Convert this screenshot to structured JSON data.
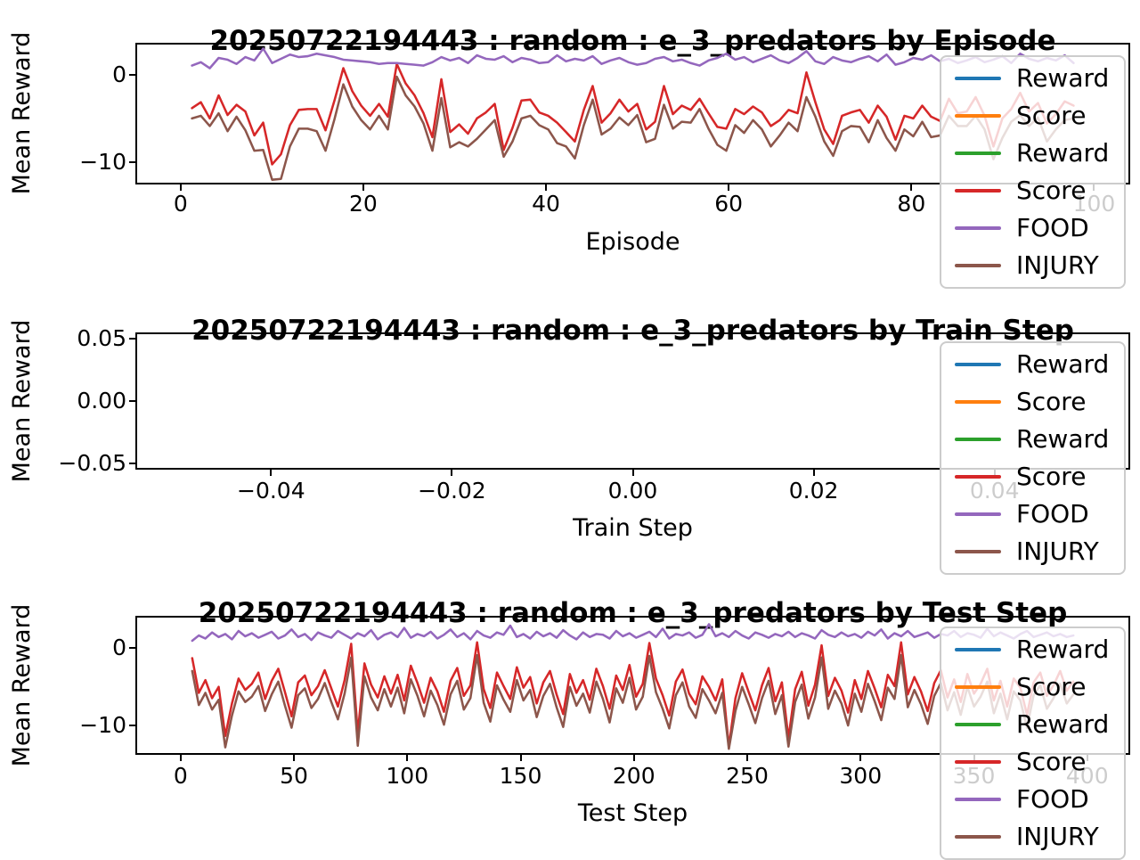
{
  "figure": {
    "background": "#ffffff",
    "text_color": "#000000",
    "accent_colors": {
      "blue": "#1f77b4",
      "orange": "#ff7f0e",
      "green": "#2ca02c",
      "red": "#d62728",
      "purple": "#9467bd",
      "brown": "#8c564b"
    }
  },
  "legend": {
    "entries": [
      {
        "label": "Reward",
        "color": "#1f77b4"
      },
      {
        "label": "Score",
        "color": "#ff7f0e"
      },
      {
        "label": "Reward",
        "color": "#2ca02c"
      },
      {
        "label": "Score",
        "color": "#d62728"
      },
      {
        "label": "FOOD",
        "color": "#9467bd"
      },
      {
        "label": "INJURY",
        "color": "#8c564b"
      }
    ]
  },
  "chart_data": [
    {
      "type": "line",
      "title": "20250722194443 : random : e_3_predators by Episode",
      "xlabel": "Episode",
      "ylabel": "Mean Reward",
      "xlim": [
        -4.95,
        103.95
      ],
      "ylim": [
        -12.55,
        3.67
      ],
      "grid": false,
      "legend_position": "upper right",
      "xticks": [
        {
          "v": 0,
          "label": "0"
        },
        {
          "v": 20,
          "label": "20"
        },
        {
          "v": 40,
          "label": "40"
        },
        {
          "v": 60,
          "label": "60"
        },
        {
          "v": 80,
          "label": "80"
        },
        {
          "v": 100,
          "label": "100"
        }
      ],
      "yticks": [
        {
          "v": 0,
          "label": "0"
        },
        {
          "v": -10,
          "label": "−10"
        }
      ],
      "x_start": 0,
      "x_step": 1,
      "series": [
        {
          "name": "Reward",
          "color": "#1f77b4",
          "values": []
        },
        {
          "name": "Score",
          "color": "#ff7f0e",
          "values": []
        },
        {
          "name": "Reward",
          "color": "#2ca02c",
          "values": []
        },
        {
          "name": "Score",
          "color": "#d62728",
          "values": [
            -3.8,
            -3.1,
            -5.0,
            -2.3,
            -4.6,
            -3.4,
            -4.2,
            -7.0,
            -5.5,
            -10.4,
            -9.2,
            -5.8,
            -4.0,
            -3.9,
            -3.9,
            -6.4,
            -2.9,
            0.9,
            -1.8,
            -3.5,
            -4.7,
            -3.3,
            -4.8,
            1.4,
            -0.9,
            -2.3,
            -4.4,
            -7.2,
            -0.4,
            -6.6,
            -5.7,
            -6.8,
            -5.0,
            -4.3,
            -3.3,
            -8.7,
            -6.1,
            -2.9,
            -2.8,
            -4.3,
            -4.7,
            -5.5,
            -6.6,
            -7.7,
            -4.0,
            -1.2,
            -5.5,
            -4.4,
            -2.8,
            -4.2,
            -3.3,
            -6.3,
            -5.4,
            -1.2,
            -4.5,
            -3.5,
            -4.0,
            -2.7,
            -4.4,
            -6.0,
            -6.2,
            -3.9,
            -4.5,
            -3.6,
            -4.3,
            -5.9,
            -5.2,
            -4.0,
            -4.4,
            0.4,
            -3.1,
            -6.3,
            -8.0,
            -4.7,
            -4.3,
            -4.0,
            -5.5,
            -3.5,
            -4.8,
            -7.5,
            -4.7,
            -5.0,
            -3.5,
            -4.8,
            -5.3,
            -2.7,
            -4.4,
            -4.2,
            -2.5,
            -4.7,
            -8.3,
            -5.0,
            -3.9,
            -2.0,
            -4.2,
            -3.2,
            -5.6,
            -4.5,
            -3.0,
            -3.5
          ]
        },
        {
          "name": "FOOD",
          "color": "#9467bd",
          "values": [
            1.2,
            1.6,
            0.9,
            2.1,
            1.9,
            1.4,
            2.2,
            1.8,
            3.2,
            1.5,
            2.0,
            2.5,
            2.2,
            2.3,
            2.6,
            2.4,
            2.2,
            1.9,
            1.8,
            1.7,
            1.6,
            1.4,
            1.5,
            1.5,
            1.4,
            1.3,
            1.2,
            1.6,
            2.2,
            1.8,
            2.1,
            1.5,
            2.4,
            2.0,
            1.9,
            2.3,
            1.6,
            2.1,
            1.9,
            1.5,
            1.6,
            2.4,
            1.7,
            2.0,
            1.8,
            2.3,
            1.4,
            1.8,
            2.1,
            1.6,
            1.3,
            1.5,
            2.0,
            2.2,
            1.7,
            1.9,
            1.5,
            1.2,
            1.8,
            2.1,
            2.6,
            1.9,
            2.2,
            1.6,
            2.0,
            2.4,
            1.8,
            1.5,
            2.1,
            2.9,
            1.7,
            1.4,
            2.2,
            1.8,
            1.6,
            2.0,
            2.3,
            1.7,
            2.5,
            1.3,
            1.6,
            2.1,
            1.9,
            2.4,
            1.7,
            2.0,
            1.5,
            1.8,
            2.2,
            1.6,
            1.9,
            2.3,
            1.5,
            2.6,
            2.0,
            1.7,
            2.1,
            1.8,
            2.4,
            1.5
          ]
        },
        {
          "name": "INJURY",
          "color": "#8c564b",
          "values": [
            -5.0,
            -4.7,
            -5.9,
            -4.4,
            -6.5,
            -4.8,
            -6.4,
            -8.8,
            -8.7,
            -12.2,
            -12.1,
            -8.3,
            -6.2,
            -6.2,
            -6.5,
            -8.8,
            -5.1,
            -1.0,
            -3.6,
            -5.2,
            -6.3,
            -4.7,
            -6.3,
            -0.1,
            -2.3,
            -3.6,
            -5.6,
            -8.8,
            -2.6,
            -8.4,
            -7.8,
            -8.3,
            -7.4,
            -6.3,
            -5.2,
            -9.5,
            -7.7,
            -5.0,
            -4.7,
            -5.8,
            -6.3,
            -7.9,
            -8.3,
            -9.7,
            -5.8,
            -2.8,
            -6.9,
            -6.2,
            -4.9,
            -5.8,
            -4.6,
            -7.8,
            -7.4,
            -3.4,
            -6.2,
            -5.4,
            -5.5,
            -3.9,
            -6.2,
            -8.1,
            -8.8,
            -5.8,
            -6.7,
            -5.2,
            -6.3,
            -8.3,
            -7.0,
            -5.5,
            -6.5,
            -2.5,
            -4.8,
            -7.7,
            -9.4,
            -6.5,
            -5.9,
            -6.0,
            -7.8,
            -5.2,
            -7.3,
            -8.8,
            -6.3,
            -7.1,
            -5.4,
            -7.2,
            -7.0,
            -4.7,
            -5.9,
            -5.9,
            -4.7,
            -6.3,
            -9.8,
            -7.3,
            -5.4,
            -4.6,
            -5.9,
            -4.9,
            -7.7,
            -6.3,
            -5.2,
            -5.0
          ]
        }
      ]
    },
    {
      "type": "line",
      "title": "20250722194443 : random : e_3_predators by Train Step",
      "xlabel": "Train Step",
      "ylabel": "Mean Reward",
      "xlim": [
        -0.055,
        0.055
      ],
      "ylim": [
        -0.055,
        0.055
      ],
      "grid": false,
      "legend_position": "upper right",
      "xticks": [
        {
          "v": -0.04,
          "label": "−0.04"
        },
        {
          "v": -0.02,
          "label": "−0.02"
        },
        {
          "v": 0.0,
          "label": "0.00"
        },
        {
          "v": 0.02,
          "label": "0.02"
        },
        {
          "v": 0.04,
          "label": "0.04"
        }
      ],
      "yticks": [
        {
          "v": 0.05,
          "label": "0.05"
        },
        {
          "v": 0.0,
          "label": "0.00"
        },
        {
          "v": -0.05,
          "label": "−0.05"
        }
      ],
      "x_start": 0,
      "x_step": 1,
      "series": [
        {
          "name": "Reward",
          "color": "#1f77b4",
          "values": []
        },
        {
          "name": "Score",
          "color": "#ff7f0e",
          "values": []
        },
        {
          "name": "Reward",
          "color": "#2ca02c",
          "values": []
        },
        {
          "name": "Score",
          "color": "#d62728",
          "values": []
        },
        {
          "name": "FOOD",
          "color": "#9467bd",
          "values": []
        },
        {
          "name": "INJURY",
          "color": "#8c564b",
          "values": []
        }
      ]
    },
    {
      "type": "line",
      "title": "20250722194443 : random : e_3_predators by Test Step",
      "xlabel": "Test Step",
      "ylabel": "Mean Reward",
      "xlim": [
        -19.95,
        418.95
      ],
      "ylim": [
        -13.76,
        4.17
      ],
      "grid": false,
      "legend_position": "upper right",
      "xticks": [
        {
          "v": 0,
          "label": "0"
        },
        {
          "v": 50,
          "label": "50"
        },
        {
          "v": 100,
          "label": "100"
        },
        {
          "v": 150,
          "label": "150"
        },
        {
          "v": 200,
          "label": "200"
        },
        {
          "v": 250,
          "label": "250"
        },
        {
          "v": 300,
          "label": "300"
        },
        {
          "v": 350,
          "label": "350"
        },
        {
          "v": 400,
          "label": "400"
        }
      ],
      "yticks": [
        {
          "v": 0,
          "label": "0"
        },
        {
          "v": -10,
          "label": "−10"
        }
      ],
      "x_start": 0,
      "x_step": 3,
      "series": [
        {
          "name": "Reward",
          "color": "#1f77b4",
          "values": []
        },
        {
          "name": "Score",
          "color": "#ff7f0e",
          "values": []
        },
        {
          "name": "Reward",
          "color": "#2ca02c",
          "values": []
        },
        {
          "name": "Score",
          "color": "#d62728",
          "values": [
            -1.2,
            -5.8,
            -4.1,
            -6.5,
            -5.0,
            -11.5,
            -7.2,
            -3.9,
            -5.4,
            -4.6,
            -3.1,
            -6.6,
            -4.2,
            -2.6,
            -5.7,
            -8.9,
            -4.4,
            -3.5,
            -6.1,
            -4.9,
            -2.8,
            -5.2,
            -7.6,
            -4.1,
            0.7,
            -11.2,
            -1.9,
            -4.7,
            -6.4,
            -3.6,
            -5.9,
            -3.4,
            -6.8,
            -2.2,
            -4.5,
            -7.1,
            -3.8,
            -5.6,
            -8.3,
            -4.2,
            -2.5,
            -6.2,
            -4.8,
            0.9,
            -5.3,
            -7.8,
            -3.1,
            -4.9,
            -6.6,
            -2.4,
            -5.1,
            -3.7,
            -7.2,
            -4.4,
            -2.9,
            -6.0,
            -8.6,
            -3.3,
            -5.8,
            -4.1,
            -6.7,
            -2.6,
            -4.9,
            -7.9,
            -3.5,
            -5.4,
            -2.1,
            -6.3,
            -4.6,
            0.8,
            -3.9,
            -6.1,
            -8.8,
            -4.3,
            -2.7,
            -5.9,
            -7.3,
            -3.6,
            -5.0,
            -6.8,
            -4.0,
            -12.9,
            -6.5,
            -3.2,
            -5.7,
            -8.1,
            -4.8,
            -2.5,
            -6.9,
            -4.4,
            -11.8,
            -5.3,
            -3.0,
            -7.5,
            -4.7,
            0.5,
            -6.2,
            -3.8,
            -5.5,
            -8.4,
            -4.1,
            -6.6,
            -2.9,
            -5.2,
            -7.7,
            -3.4,
            -4.9,
            0.9,
            -6.0,
            -3.7,
            -5.6,
            -8.2,
            -4.5,
            -2.8,
            -6.4,
            -4.0,
            -7.0,
            -3.3,
            -5.9,
            -4.6,
            -2.6,
            -6.8,
            -4.2,
            -7.6,
            -3.9,
            -5.1,
            -8.7,
            -4.4,
            -3.1,
            -6.2,
            -4.8,
            -2.9,
            -5.5,
            -4.3
          ]
        },
        {
          "name": "FOOD",
          "color": "#9467bd",
          "values": [
            1.1,
            1.8,
            1.4,
            2.2,
            1.6,
            2.0,
            1.3,
            2.4,
            1.7,
            2.1,
            1.5,
            1.9,
            2.3,
            1.4,
            1.8,
            2.6,
            1.6,
            2.0,
            1.2,
            2.2,
            1.8,
            1.5,
            2.4,
            1.9,
            1.4,
            2.1,
            1.7,
            2.5,
            1.3,
            1.9,
            2.2,
            1.6,
            2.8,
            1.5,
            2.0,
            1.7,
            2.3,
            1.4,
            1.9,
            2.6,
            1.6,
            2.1,
            1.3,
            2.4,
            1.8,
            1.5,
            2.2,
            1.9,
            3.1,
            1.6,
            2.0,
            1.4,
            2.3,
            1.7,
            2.1,
            1.5,
            2.5,
            1.8,
            1.3,
            2.2,
            1.6,
            2.0,
            1.9,
            1.4,
            2.4,
            1.7,
            2.1,
            1.5,
            1.9,
            2.3,
            1.6,
            2.7,
            1.4,
            2.0,
            1.8,
            2.2,
            1.5,
            1.9,
            3.3,
            1.7,
            2.1,
            1.6,
            2.4,
            1.8,
            1.4,
            2.2,
            1.9,
            1.5,
            2.0,
            1.7,
            2.3,
            1.6,
            2.1,
            1.8,
            1.4,
            2.5,
            1.9,
            1.6,
            2.2,
            1.7,
            2.0,
            1.5,
            2.3,
            1.8,
            2.6,
            1.4,
            2.1,
            1.7,
            2.4,
            1.6,
            1.9,
            2.2,
            1.5,
            2.0,
            1.8,
            2.4,
            1.6,
            2.1,
            1.9,
            1.5,
            2.7,
            1.7,
            2.2,
            1.8,
            1.4,
            2.0,
            2.4,
            1.6,
            1.9,
            2.2,
            1.7,
            2.0,
            1.6,
            1.8
          ]
        },
        {
          "name": "INJURY",
          "color": "#8c564b",
          "values": [
            -2.9,
            -7.4,
            -5.8,
            -8.0,
            -6.7,
            -13.0,
            -8.8,
            -5.6,
            -7.0,
            -6.3,
            -4.9,
            -8.2,
            -6.0,
            -4.3,
            -7.5,
            -10.4,
            -6.1,
            -5.2,
            -7.8,
            -6.6,
            -4.5,
            -7.0,
            -9.3,
            -5.9,
            -1.1,
            -12.8,
            -3.6,
            -6.4,
            -8.1,
            -5.3,
            -7.6,
            -5.1,
            -8.5,
            -4.0,
            -6.2,
            -8.9,
            -5.5,
            -7.4,
            -10.0,
            -6.0,
            -4.2,
            -8.0,
            -6.5,
            -0.8,
            -7.1,
            -9.6,
            -4.8,
            -6.7,
            -8.3,
            -4.1,
            -6.8,
            -5.4,
            -9.0,
            -6.2,
            -4.6,
            -7.7,
            -10.3,
            -5.0,
            -7.5,
            -5.9,
            -8.4,
            -4.3,
            -6.6,
            -9.7,
            -5.2,
            -7.1,
            -3.8,
            -8.0,
            -6.3,
            -0.9,
            -5.7,
            -7.9,
            -10.5,
            -6.1,
            -4.4,
            -7.6,
            -9.1,
            -5.3,
            -6.8,
            -8.5,
            -5.8,
            -13.2,
            -8.2,
            -5.0,
            -7.3,
            -9.8,
            -6.5,
            -4.2,
            -8.6,
            -6.1,
            -12.9,
            -7.0,
            -4.7,
            -9.2,
            -6.4,
            -1.1,
            -7.9,
            -5.5,
            -7.2,
            -10.1,
            -5.9,
            -8.3,
            -4.6,
            -6.9,
            -9.4,
            -5.1,
            -6.6,
            -0.8,
            -7.7,
            -5.4,
            -7.3,
            -9.9,
            -6.2,
            -4.5,
            -8.1,
            -5.7,
            -8.7,
            -5.0,
            -7.6,
            -6.3,
            -4.3,
            -8.5,
            -5.9,
            -9.3,
            -5.6,
            -6.8,
            -10.4,
            -6.1,
            -4.8,
            -7.9,
            -6.5,
            -4.6,
            -7.2,
            -6.0
          ]
        }
      ]
    }
  ]
}
